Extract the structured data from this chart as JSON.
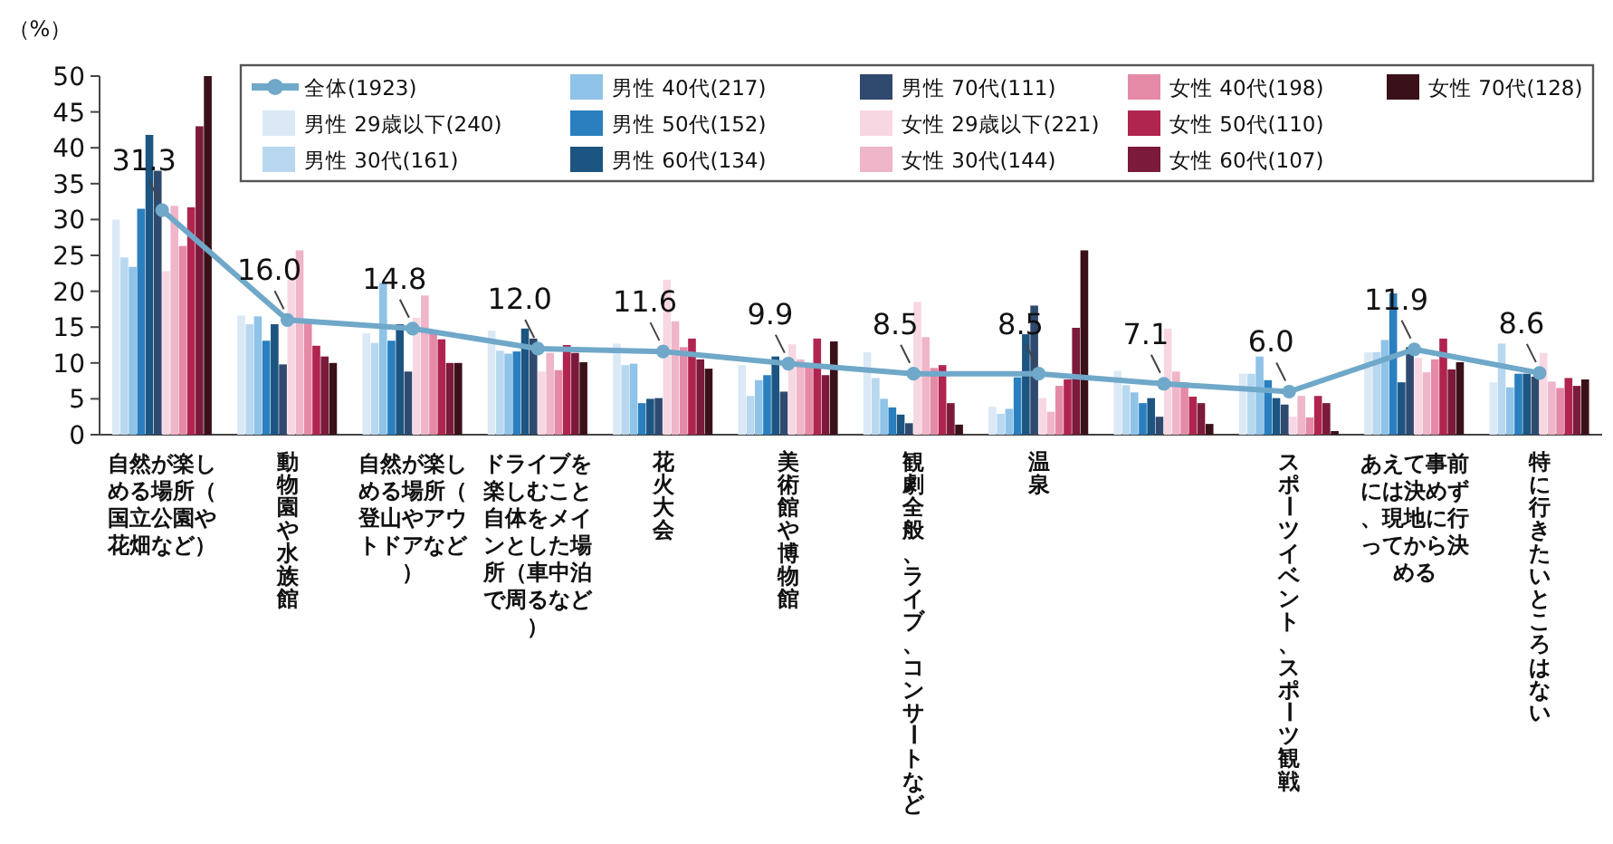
{
  "chart_data": {
    "type": "bar",
    "ylabel": "（%）",
    "ylim": [
      0,
      50
    ],
    "yticks": [
      0,
      5,
      10,
      15,
      20,
      25,
      30,
      35,
      40,
      45,
      50
    ],
    "legend": "top",
    "categories": [
      "自然が楽しめる場所（国立公園や花畑など）",
      "動物園や水族館",
      "自然が楽しめる場所（登山やアウトドアなど）",
      "ドライブを楽しむこと自体をメインとした場所（車中泊で周るなど）",
      "花火大会",
      "美術館や博物館",
      "観劇全般、ライブ、コンサートなど",
      "温泉",
      null,
      "スポーツイベント、スポーツ観戦",
      "あえて事前には決めず、現地に行ってから決める",
      "特に行きたいところはない"
    ],
    "series": [
      {
        "name": "全体(1923)",
        "type": "line",
        "marker": "circle",
        "color": "#6fa8c9",
        "values": [
          31.3,
          16.0,
          14.8,
          12.0,
          11.6,
          9.9,
          8.5,
          8.5,
          7.1,
          6.0,
          11.9,
          8.6
        ],
        "value_labels": [
          "31.3",
          "16.0",
          "14.8",
          "12.0",
          "11.6",
          "9.9",
          "8.5",
          "8.5",
          "7.1",
          "6.0",
          "11.9",
          "8.6"
        ]
      },
      {
        "name": "男性 29歳以下(240)",
        "color": "#dbe9f6",
        "values": [
          30,
          16.6,
          14.1,
          14.5,
          12.7,
          9.7,
          11.5,
          3.9,
          8.9,
          8.5,
          11.5,
          7.3
        ]
      },
      {
        "name": "男性 30代(161)",
        "color": "#b8d8ef",
        "values": [
          24.7,
          15.4,
          12.8,
          11.7,
          9.7,
          5.4,
          7.9,
          2.9,
          6.9,
          8.5,
          11.5,
          12.7
        ]
      },
      {
        "name": "男性 40代(217)",
        "color": "#8fc3e8",
        "values": [
          23.4,
          16.5,
          21.2,
          11.3,
          9.9,
          7.6,
          5,
          3.6,
          5.9,
          10.9,
          13.2,
          6.6
        ]
      },
      {
        "name": "男性 50代(152)",
        "color": "#2a7fbf",
        "values": [
          31.5,
          13.1,
          13.1,
          11.6,
          4.4,
          8.3,
          3.8,
          8,
          4.4,
          7.6,
          19.7,
          8.5
        ]
      },
      {
        "name": "男性 60代(134)",
        "color": "#1c5582",
        "values": [
          41.8,
          15.4,
          15.4,
          14.8,
          5,
          10.9,
          2.8,
          14,
          5.1,
          5.1,
          7.3,
          8.5
        ]
      },
      {
        "name": "男性 70代(111)",
        "color": "#2f4a6e",
        "values": [
          36.8,
          9.8,
          8.8,
          13.4,
          5.1,
          6,
          1.6,
          18,
          2.5,
          4.2,
          12.2,
          8.1
        ]
      },
      {
        "name": "女性 29歳以下(221)",
        "color": "#f7d7e2",
        "values": [
          22.8,
          21.6,
          16.3,
          8.8,
          21.6,
          12.6,
          18.5,
          5.1,
          14.8,
          2.5,
          10.7,
          11.4
        ]
      },
      {
        "name": "女性 30代(144)",
        "color": "#efb5c8",
        "values": [
          31.9,
          25.7,
          19.4,
          11.4,
          15.8,
          10.5,
          13.6,
          3.2,
          8.8,
          5.4,
          8.7,
          7.4
        ]
      },
      {
        "name": "女性 40代(198)",
        "color": "#e48aa7",
        "values": [
          26.3,
          16,
          14.6,
          9,
          12.2,
          9.7,
          9.3,
          6.8,
          7.3,
          2.4,
          10.5,
          6.5
        ]
      },
      {
        "name": "女性 50代(110)",
        "color": "#b0254f",
        "values": [
          31.7,
          12.4,
          13.3,
          12.5,
          13.4,
          13.4,
          9.7,
          7.7,
          5.3,
          5.4,
          13.4,
          7.9
        ]
      },
      {
        "name": "女性 60代(107)",
        "color": "#7b1a3b",
        "values": [
          43,
          10.9,
          10,
          11.4,
          10.5,
          8.3,
          4.4,
          14.9,
          4.4,
          4.4,
          9.1,
          6.8
        ]
      },
      {
        "name": "女性 70代(128)",
        "color": "#3a1119",
        "values": [
          50,
          10,
          10,
          10.1,
          9.2,
          13,
          1.4,
          25.7,
          1.5,
          0.5,
          10.1,
          7.7
        ]
      }
    ]
  }
}
